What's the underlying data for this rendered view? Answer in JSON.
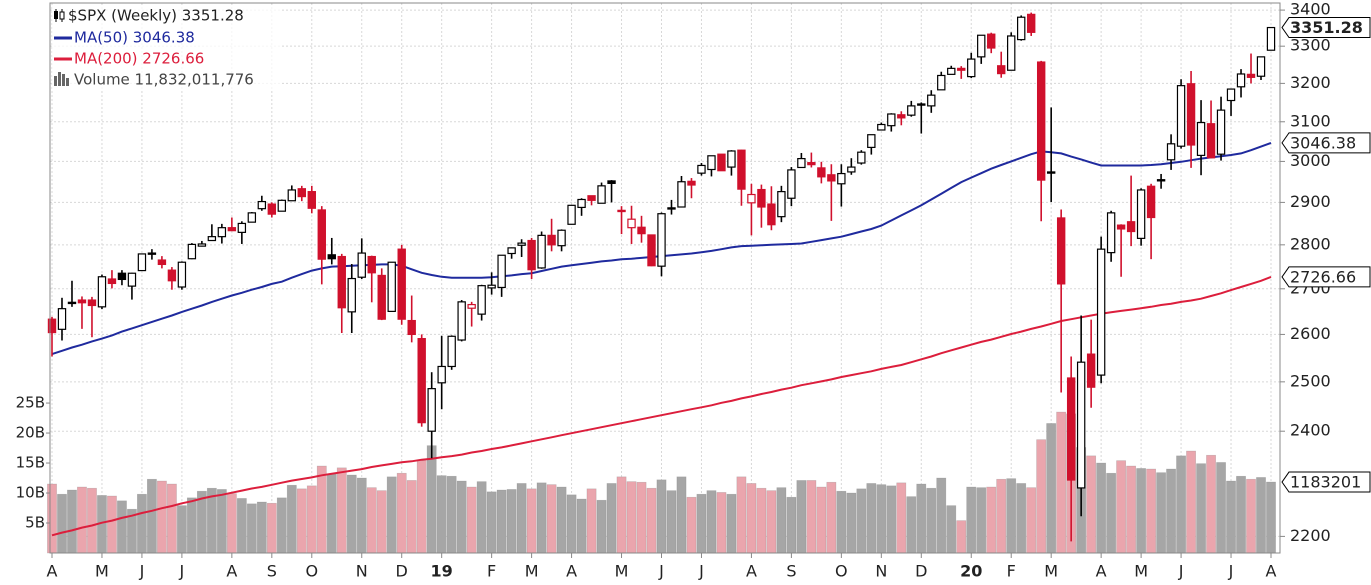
{
  "chart_data": {
    "type": "candlestick",
    "title": "$SPX (Weekly) 3351.28",
    "categories": [
      "A",
      null,
      null,
      null,
      null,
      "M",
      null,
      null,
      null,
      "J",
      null,
      null,
      null,
      "J",
      null,
      null,
      null,
      null,
      "A",
      null,
      null,
      null,
      "S",
      null,
      null,
      null,
      "O",
      null,
      null,
      null,
      null,
      "N",
      null,
      null,
      null,
      "D",
      null,
      null,
      null,
      "19",
      null,
      null,
      null,
      null,
      "F",
      null,
      null,
      null,
      "M",
      null,
      null,
      null,
      "A",
      null,
      null,
      null,
      null,
      "M",
      null,
      null,
      null,
      "J",
      null,
      null,
      null,
      "J",
      null,
      null,
      null,
      null,
      "A",
      null,
      null,
      null,
      "S",
      null,
      null,
      null,
      null,
      "O",
      null,
      null,
      null,
      "N",
      null,
      null,
      null,
      "D",
      null,
      null,
      null,
      null,
      "20",
      null,
      null,
      null,
      "F",
      null,
      null,
      null,
      "M",
      null,
      null,
      null,
      null,
      "A",
      null,
      null,
      null,
      "M",
      null,
      null,
      null,
      "J",
      null,
      null,
      null,
      null,
      "J",
      null,
      null,
      null,
      "A"
    ],
    "open": [
      2633,
      2611,
      2670,
      2675,
      2675,
      2660,
      2722,
      2735,
      2706,
      2741,
      2781,
      2765,
      2742,
      2704,
      2768,
      2797,
      2810,
      2819,
      2840,
      2829,
      2853,
      2885,
      2896,
      2879,
      2904,
      2933,
      2926,
      2882,
      2777,
      2773,
      2649,
      2726,
      2773,
      2730,
      2650,
      2790,
      2630,
      2591,
      2400,
      2498,
      2532,
      2588,
      2657,
      2644,
      2702,
      2703,
      2780,
      2799,
      2810,
      2747,
      2822,
      2798,
      2848,
      2888,
      2916,
      2898,
      2952,
      2880,
      2840,
      2841,
      2823,
      2751,
      2887,
      2889,
      2951,
      2971,
      2980,
      3018,
      2986,
      3028,
      2899,
      2931,
      2896,
      2866,
      2910,
      2985,
      2997,
      2984,
      2967,
      2945,
      2974,
      2996,
      3035,
      3079,
      3090,
      3118,
      3117,
      3143,
      3141,
      3183,
      3224,
      3240,
      3218,
      3271,
      3333,
      3247,
      3235,
      3318,
      3388,
      3257,
      2974,
      2863,
      2508,
      2290,
      2558,
      2514,
      2782,
      2846,
      2854,
      2815,
      2939,
      2953,
      3004,
      3038,
      3199,
      3015,
      3095,
      3018,
      3155,
      3191,
      3224,
      3219,
      3289
    ],
    "high": [
      2638,
      2680,
      2718,
      2683,
      2682,
      2732,
      2742,
      2742,
      2736,
      2779,
      2790,
      2774,
      2749,
      2762,
      2804,
      2809,
      2848,
      2849,
      2864,
      2855,
      2877,
      2916,
      2900,
      2907,
      2941,
      2940,
      2940,
      2891,
      2816,
      2779,
      2756,
      2815,
      2775,
      2746,
      2760,
      2800,
      2685,
      2600,
      2520,
      2597,
      2598,
      2675,
      2671,
      2709,
      2737,
      2776,
      2794,
      2813,
      2816,
      2831,
      2861,
      2836,
      2893,
      2910,
      2916,
      2948,
      2954,
      2891,
      2892,
      2868,
      2824,
      2876,
      2906,
      2964,
      2959,
      2996,
      3014,
      3018,
      3028,
      3029,
      2945,
      2943,
      2939,
      2940,
      2986,
      3021,
      3022,
      2999,
      2993,
      2993,
      3008,
      3028,
      3067,
      3098,
      3122,
      3127,
      3154,
      3150,
      3182,
      3231,
      3247,
      3246,
      3282,
      3330,
      3337,
      3285,
      3338,
      3385,
      3393,
      3260,
      3137,
      2883,
      2553,
      2641,
      2632,
      2819,
      2880,
      2848,
      2965,
      2934,
      2945,
      2969,
      3068,
      3211,
      3233,
      3156,
      3155,
      3165,
      3186,
      3238,
      3280,
      3272,
      3352
    ],
    "low": [
      2553,
      2587,
      2660,
      2612,
      2594,
      2655,
      2701,
      2708,
      2676,
      2741,
      2766,
      2746,
      2698,
      2698,
      2767,
      2796,
      2809,
      2803,
      2832,
      2802,
      2853,
      2880,
      2864,
      2879,
      2904,
      2903,
      2874,
      2710,
      2755,
      2603,
      2603,
      2722,
      2670,
      2631,
      2649,
      2621,
      2583,
      2409,
      2347,
      2444,
      2525,
      2585,
      2617,
      2630,
      2687,
      2682,
      2768,
      2772,
      2722,
      2745,
      2785,
      2785,
      2848,
      2868,
      2893,
      2898,
      2900,
      2825,
      2802,
      2805,
      2751,
      2728,
      2871,
      2888,
      2910,
      2965,
      2963,
      2977,
      2965,
      2892,
      2822,
      2840,
      2834,
      2853,
      2891,
      2985,
      2985,
      2946,
      2856,
      2890,
      2967,
      2992,
      3017,
      3078,
      3075,
      3091,
      3113,
      3070,
      3123,
      3183,
      3224,
      3212,
      3214,
      3252,
      3281,
      3215,
      3235,
      3315,
      3328,
      2855,
      2901,
      2478,
      2191,
      2237,
      2447,
      2497,
      2761,
      2727,
      2797,
      2798,
      2767,
      2933,
      2979,
      3032,
      2984,
      2966,
      3008,
      3002,
      3115,
      3163,
      3200,
      3209,
      3289
    ],
    "close": [
      2604,
      2656,
      2670,
      2669,
      2663,
      2727,
      2712,
      2721,
      2735,
      2779,
      2779,
      2755,
      2718,
      2760,
      2801,
      2802,
      2819,
      2840,
      2833,
      2850,
      2875,
      2902,
      2872,
      2905,
      2930,
      2914,
      2886,
      2767,
      2768,
      2658,
      2723,
      2781,
      2736,
      2633,
      2760,
      2633,
      2600,
      2417,
      2486,
      2532,
      2596,
      2671,
      2665,
      2707,
      2708,
      2776,
      2793,
      2804,
      2743,
      2822,
      2800,
      2834,
      2893,
      2907,
      2905,
      2940,
      2946,
      2881,
      2860,
      2826,
      2752,
      2873,
      2887,
      2950,
      2942,
      2990,
      3014,
      2977,
      3026,
      2932,
      2919,
      2889,
      2847,
      2926,
      2979,
      3007,
      2992,
      2962,
      2952,
      2970,
      2986,
      3023,
      3067,
      3093,
      3120,
      3110,
      3141,
      3146,
      3169,
      3221,
      3240,
      3235,
      3265,
      3330,
      3295,
      3226,
      3328,
      3380,
      3338,
      2954,
      2972,
      2711,
      2305,
      2541,
      2489,
      2790,
      2875,
      2837,
      2831,
      2930,
      2864,
      2955,
      3044,
      3194,
      3041,
      3098,
      3009,
      3130,
      3185,
      3225,
      3216,
      3271,
      3351.28
    ],
    "up_color": "#000000",
    "down_color": "#d0102c",
    "series": [
      {
        "name": "MA(50) 3046.38",
        "color": "#1f2a9e",
        "values": [
          2558,
          2565,
          2572,
          2578,
          2585,
          2591,
          2598,
          2606,
          2613,
          2620,
          2627,
          2634,
          2641,
          2649,
          2656,
          2663,
          2671,
          2678,
          2685,
          2691,
          2698,
          2704,
          2711,
          2716,
          2725,
          2733,
          2741,
          2746,
          2750,
          2751,
          2752,
          2753,
          2754,
          2755,
          2755,
          2752,
          2744,
          2736,
          2731,
          2727,
          2725,
          2725,
          2725,
          2725,
          2726,
          2728,
          2730,
          2733,
          2735,
          2740,
          2745,
          2750,
          2753,
          2756,
          2759,
          2762,
          2764,
          2767,
          2768,
          2770,
          2772,
          2774,
          2776,
          2778,
          2780,
          2783,
          2786,
          2790,
          2794,
          2797,
          2798,
          2799,
          2800,
          2801,
          2802,
          2803,
          2807,
          2811,
          2815,
          2819,
          2825,
          2831,
          2837,
          2845,
          2857,
          2869,
          2881,
          2893,
          2907,
          2921,
          2935,
          2949,
          2960,
          2971,
          2982,
          2991,
          3000,
          3009,
          3018,
          3025,
          3023,
          3020,
          3012,
          3005,
          2997,
          2990,
          2990,
          2990,
          2990,
          2990,
          2991,
          2993,
          2996,
          2999,
          3003,
          3007,
          3010,
          3013,
          3016,
          3020,
          3028,
          3037,
          3046.38
        ]
      },
      {
        "name": "MA(200) 2726.66",
        "color": "#dc1e3c",
        "values": [
          2202,
          2207,
          2211,
          2216,
          2220,
          2225,
          2229,
          2234,
          2238,
          2243,
          2247,
          2252,
          2256,
          2261,
          2265,
          2270,
          2274,
          2277,
          2281,
          2285,
          2289,
          2292,
          2296,
          2300,
          2304,
          2307,
          2310,
          2314,
          2317,
          2320,
          2323,
          2326,
          2330,
          2333,
          2336,
          2339,
          2341,
          2344,
          2346,
          2349,
          2351,
          2354,
          2358,
          2361,
          2365,
          2368,
          2372,
          2376,
          2380,
          2384,
          2388,
          2392,
          2396,
          2400,
          2404,
          2408,
          2412,
          2416,
          2420,
          2424,
          2428,
          2432,
          2436,
          2440,
          2444,
          2448,
          2452,
          2457,
          2461,
          2466,
          2470,
          2475,
          2479,
          2484,
          2488,
          2493,
          2497,
          2501,
          2505,
          2510,
          2514,
          2518,
          2522,
          2527,
          2531,
          2535,
          2541,
          2547,
          2553,
          2560,
          2566,
          2572,
          2578,
          2584,
          2589,
          2595,
          2601,
          2606,
          2612,
          2617,
          2623,
          2629,
          2633,
          2637,
          2641,
          2645,
          2648,
          2651,
          2654,
          2657,
          2660,
          2664,
          2667,
          2671,
          2674,
          2678,
          2684,
          2690,
          2697,
          2704,
          2711,
          2718,
          2726.66
        ]
      }
    ],
    "volume": {
      "name": "Volume 11,832,011,776",
      "tag": "1183201",
      "up_color": "#a6a6a6",
      "down_color": "#eaa5ad",
      "values": [
        11500000000.0,
        9800000000.0,
        10500000000.0,
        11000000000.0,
        10800000000.0,
        9600000000.0,
        9500000000.0,
        8700000000.0,
        7300000000.0,
        9800000000.0,
        12300000000.0,
        12000000000.0,
        11500000000.0,
        7900000000.0,
        9200000000.0,
        10300000000.0,
        10800000000.0,
        10600000000.0,
        9900000000.0,
        9100000000.0,
        8200000000.0,
        8500000000.0,
        8300000000.0,
        9200000000.0,
        11300000000.0,
        10700000000.0,
        11200000000.0,
        14500000000.0,
        13200000000.0,
        14200000000.0,
        13000000000.0,
        12500000000.0,
        10900000000.0,
        10400000000.0,
        12700000000.0,
        13300000000.0,
        12100000000.0,
        15400000000.0,
        17900000000.0,
        12900000000.0,
        12800000000.0,
        12000000000.0,
        11000000000.0,
        11900000000.0,
        10200000000.0,
        10500000000.0,
        10600000000.0,
        11600000000.0,
        10700000000.0,
        11700000000.0,
        11400000000.0,
        11000000000.0,
        9700000000.0,
        9000000000.0,
        10700000000.0,
        8800000000.0,
        11600000000.0,
        12700000000.0,
        11900000000.0,
        11800000000.0,
        10800000000.0,
        12200000000.0,
        10400000000.0,
        12700000000.0,
        9300000000.0,
        9800000000.0,
        10400000000.0,
        10100000000.0,
        9800000000.0,
        12700000000.0,
        11600000000.0,
        10800000000.0,
        10400000000.0,
        10900000000.0,
        9300000000.0,
        12100000000.0,
        12100000000.0,
        11000000000.0,
        11800000000.0,
        10300000000.0,
        10000000000.0,
        10700000000.0,
        11600000000.0,
        11400000000.0,
        11200000000.0,
        11700000000.0,
        9400000000.0,
        11500000000.0,
        10800000000.0,
        12500000000.0,
        7900000000.0,
        5400000000.0,
        11000000000.0,
        10900000000.0,
        11000000000.0,
        12300000000.0,
        12400000000.0,
        11600000000.0,
        10900000000.0,
        18900000000.0,
        21600000000.0,
        23500000000.0,
        23200000000.0,
        17600000000.0,
        16200000000.0,
        15000000000.0,
        13300000000.0,
        15400000000.0,
        14500000000.0,
        14100000000.0,
        14000000000.0,
        13400000000.0,
        14000000000.0,
        16200000000.0,
        17000000000.0,
        14900000000.0,
        16300000000.0,
        15100000000.0,
        12000000000.0,
        12800000000.0,
        12300000000.0,
        12600000000.0,
        11832011776
      ]
    },
    "ylim": [
      2170,
      3420
    ],
    "log_scale": true,
    "yticks": [
      2200,
      2400,
      2500,
      2600,
      2700,
      2800,
      2900,
      3000,
      3100,
      3200,
      3300,
      3400
    ],
    "y2lim": [
      0,
      91700000000.0
    ],
    "y2ticks": [
      {
        "value": 5000000000.0,
        "label": "5B"
      },
      {
        "value": 10000000000.0,
        "label": "10B"
      },
      {
        "value": 15000000000.0,
        "label": "15B"
      },
      {
        "value": 20000000000.0,
        "label": "20B"
      },
      {
        "value": 25000000000.0,
        "label": "25B"
      }
    ],
    "grid": true
  }
}
